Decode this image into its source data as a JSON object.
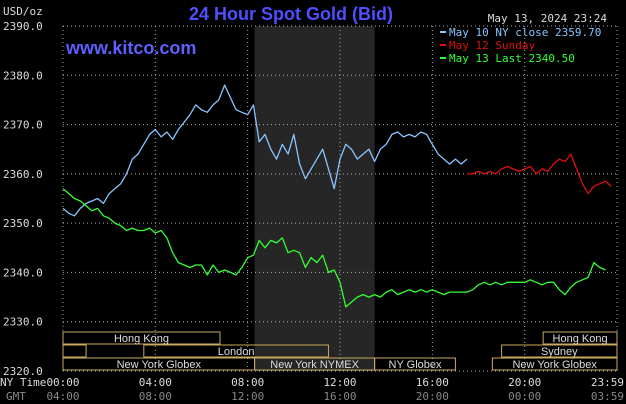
{
  "header": {
    "title": "24 Hour Spot Gold (Bid)",
    "timestamp": "May 13, 2024 23:24",
    "website": "www.kitco.com",
    "unit": "USD/oz",
    "ny_time_label": "NY Time",
    "gmt_label": "GMT"
  },
  "colors": {
    "title": "#4f4fff",
    "website": "#5f5fff",
    "text": "#dcdcdc",
    "grid": "#aaaaaa",
    "shade": "#262626",
    "session_bar": "#c8aa5e",
    "may10": "#8ac4ff",
    "may12": "#dd1111",
    "may13": "#33ff33"
  },
  "chart_data": {
    "type": "line",
    "ylim": [
      2320,
      2390
    ],
    "yticks": [
      "2390.0",
      "2380.0",
      "2370.0",
      "2360.0",
      "2350.0",
      "2340.0",
      "2330.0",
      "2320.0"
    ],
    "xlim": [
      0,
      24
    ],
    "xtick_hours": [
      0,
      4,
      8,
      12,
      16,
      20,
      24
    ],
    "xticks_ny": [
      "00:00",
      "04:00",
      "08:00",
      "12:00",
      "16:00",
      "20:00",
      "23:59"
    ],
    "xticks_gmt": [
      "04:00",
      "08:00",
      "12:00",
      "16:00",
      "20:00",
      "00:00",
      "03:59"
    ],
    "shaded_hours": [
      8.3,
      13.5
    ],
    "legend": [
      {
        "label": "May 10 NY close 2359.70",
        "color_key": "may10"
      },
      {
        "label": "May 12 Sunday",
        "color_key": "may12"
      },
      {
        "label": "May 13 Last 2340.50",
        "color_key": "may13"
      }
    ],
    "series": [
      {
        "color_key": "may10",
        "x": [
          0,
          0.25,
          0.5,
          0.75,
          1.0,
          1.25,
          1.5,
          1.75,
          2.0,
          2.25,
          2.5,
          2.75,
          3.0,
          3.25,
          3.5,
          3.75,
          4.0,
          4.25,
          4.5,
          4.75,
          5.0,
          5.25,
          5.5,
          5.75,
          6.0,
          6.25,
          6.5,
          6.75,
          7.0,
          7.25,
          7.5,
          7.75,
          8.0,
          8.25,
          8.5,
          8.75,
          9.0,
          9.25,
          9.5,
          9.75,
          10.0,
          10.25,
          10.5,
          10.75,
          11.0,
          11.25,
          11.5,
          11.75,
          12.0,
          12.25,
          12.5,
          12.75,
          13.0,
          13.25,
          13.5,
          13.75,
          14.0,
          14.25,
          14.5,
          14.75,
          15.0,
          15.25,
          15.5,
          15.75,
          16.0,
          16.25,
          16.5,
          16.75,
          17.0,
          17.25,
          17.5
        ],
        "y": [
          2353,
          2352,
          2351.5,
          2353,
          2354,
          2354.5,
          2355,
          2354,
          2356,
          2357,
          2358,
          2360,
          2363,
          2364,
          2366,
          2368,
          2369,
          2367.5,
          2368.5,
          2367,
          2369,
          2370.5,
          2372,
          2374,
          2373,
          2372.5,
          2374,
          2375,
          2378,
          2375.5,
          2373,
          2372.5,
          2372,
          2374,
          2366.5,
          2368,
          2365,
          2363,
          2366,
          2364,
          2368,
          2362,
          2359,
          2361,
          2363,
          2365,
          2361,
          2357,
          2363,
          2366,
          2365,
          2363,
          2364,
          2365,
          2362.5,
          2365,
          2366,
          2368,
          2368.5,
          2367.5,
          2368,
          2367.5,
          2368.5,
          2368,
          2366,
          2364,
          2363,
          2362,
          2363,
          2362,
          2363
        ]
      },
      {
        "color_key": "may12",
        "x": [
          17.5,
          17.75,
          18.0,
          18.25,
          18.5,
          18.75,
          19.0,
          19.25,
          19.5,
          19.75,
          20.0,
          20.25,
          20.5,
          20.75,
          21.0,
          21.25,
          21.5,
          21.75,
          22.0,
          22.25,
          22.5,
          22.75,
          23.0,
          23.25,
          23.5,
          23.75
        ],
        "y": [
          2360,
          2360,
          2360.5,
          2360,
          2360.5,
          2360,
          2361,
          2361.5,
          2361,
          2360.5,
          2361,
          2361.5,
          2360,
          2361,
          2360.5,
          2362,
          2363,
          2362.5,
          2364,
          2361,
          2358,
          2356,
          2357.5,
          2358,
          2358.5,
          2357.5
        ]
      },
      {
        "color_key": "may13",
        "x": [
          0,
          0.25,
          0.5,
          0.75,
          1.0,
          1.25,
          1.5,
          1.75,
          2.0,
          2.25,
          2.5,
          2.75,
          3.0,
          3.25,
          3.5,
          3.75,
          4.0,
          4.25,
          4.5,
          4.75,
          5.0,
          5.25,
          5.5,
          5.75,
          6.0,
          6.25,
          6.5,
          6.75,
          7.0,
          7.25,
          7.5,
          7.75,
          8.0,
          8.25,
          8.5,
          8.75,
          9.0,
          9.25,
          9.5,
          9.75,
          10.0,
          10.25,
          10.5,
          10.75,
          11.0,
          11.25,
          11.5,
          11.75,
          12.0,
          12.25,
          12.5,
          12.75,
          13.0,
          13.25,
          13.5,
          13.75,
          14.0,
          14.25,
          14.5,
          14.75,
          15.0,
          15.25,
          15.5,
          15.75,
          16.0,
          16.25,
          16.5,
          16.75,
          17.0,
          17.25,
          17.5,
          17.75,
          18.0,
          18.25,
          18.5,
          18.75,
          19.0,
          19.25,
          19.5,
          19.75,
          20.0,
          20.25,
          20.5,
          20.75,
          21.0,
          21.25,
          21.5,
          21.75,
          22.0,
          22.25,
          22.5,
          22.75,
          23.0,
          23.25,
          23.5
        ],
        "y": [
          2357,
          2356,
          2355,
          2354.5,
          2353.5,
          2352.5,
          2353,
          2351.5,
          2351,
          2350,
          2349.5,
          2348.5,
          2349,
          2348.5,
          2348.5,
          2349,
          2348,
          2348.5,
          2347,
          2344,
          2342,
          2341.5,
          2341,
          2341.5,
          2341.5,
          2339.5,
          2341.5,
          2340,
          2340.5,
          2340,
          2339.5,
          2341,
          2343,
          2343.5,
          2346.5,
          2345,
          2346.5,
          2346,
          2347,
          2344,
          2344.5,
          2344,
          2341,
          2343,
          2342,
          2343.5,
          2340,
          2340.5,
          2338,
          2333,
          2334,
          2335,
          2335.5,
          2335,
          2335.5,
          2335,
          2336,
          2336.5,
          2335.5,
          2336,
          2336.5,
          2336,
          2336.5,
          2336,
          2336.5,
          2336,
          2335.5,
          2336,
          2336,
          2336,
          2336,
          2336.5,
          2337.5,
          2338,
          2337.5,
          2338,
          2337.5,
          2338,
          2338,
          2338,
          2338,
          2338.5,
          2338,
          2337.5,
          2338,
          2338,
          2336.5,
          2335.5,
          2337,
          2338,
          2338.5,
          2339,
          2342,
          2341,
          2340.5
        ]
      }
    ]
  },
  "sessions": [
    {
      "label": "Hong Kong",
      "row": 0,
      "start": 0,
      "end": 6.8
    },
    {
      "label": "Hong Kong",
      "row": 0,
      "start": 20.8,
      "end": 24
    },
    {
      "label": "London",
      "row": 1,
      "start": 3.5,
      "end": 11.5
    },
    {
      "label": "",
      "row": 1,
      "start": 0,
      "end": 1.0
    },
    {
      "label": "Sydney",
      "row": 1,
      "start": 19.0,
      "end": 24
    },
    {
      "label": "New York Globex",
      "row": 2,
      "start": 0,
      "end": 8.3
    },
    {
      "label": "New York NYMEX",
      "row": 2,
      "start": 8.3,
      "end": 13.5
    },
    {
      "label": "NY Globex",
      "row": 2,
      "start": 13.5,
      "end": 17.0
    },
    {
      "label": "New York Globex",
      "row": 2,
      "start": 18.6,
      "end": 24
    }
  ]
}
